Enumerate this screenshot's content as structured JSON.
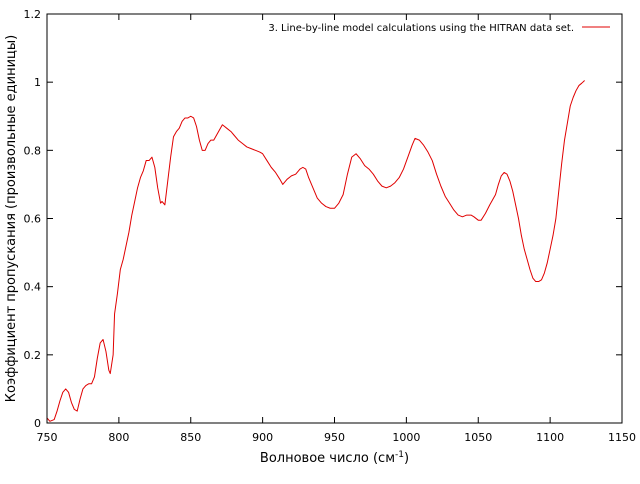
{
  "chart_data": {
    "type": "line",
    "title": "",
    "xlabel": "Волновое число (см",
    "xlabel_sup": "-1",
    "xlabel_suffix": ")",
    "ylabel": "Коэффициент пропускания (произвольные единицы)",
    "xlim": [
      750,
      1150
    ],
    "ylim": [
      0,
      1.2
    ],
    "x_ticks": [
      750,
      800,
      850,
      900,
      950,
      1000,
      1050,
      1100,
      1150
    ],
    "y_ticks": [
      0,
      0.2,
      0.4,
      0.6,
      0.8,
      1,
      1.2
    ],
    "x_tick_labels": [
      "750",
      "800",
      "850",
      "900",
      "950",
      "1000",
      "1050",
      "1100",
      "1150"
    ],
    "y_tick_labels": [
      "0",
      "0.2",
      "0.4",
      "0.6",
      "0.8",
      "1",
      "1.2"
    ],
    "grid": false,
    "legend_position": "top-right",
    "series": [
      {
        "name": "3. Line-by-line  model calculations using the HITRAN data set.",
        "color": "#e00000",
        "x": [
          750,
          752,
          755,
          757,
          759,
          761,
          763,
          765,
          767,
          769,
          771,
          773,
          775,
          777,
          779,
          781,
          783,
          785,
          787,
          789,
          791,
          793,
          794,
          796,
          797,
          799,
          801,
          803,
          805,
          807,
          809,
          811,
          813,
          815,
          817,
          819,
          821,
          823,
          825,
          827,
          829,
          830,
          832,
          834,
          836,
          838,
          840,
          842,
          844,
          846,
          848,
          850,
          852,
          854,
          856,
          858,
          860,
          862,
          864,
          866,
          868,
          870,
          872,
          875,
          878,
          880,
          883,
          886,
          889,
          892,
          895,
          898,
          900,
          903,
          906,
          909,
          912,
          914,
          917,
          920,
          923,
          926,
          928,
          930,
          932,
          935,
          938,
          941,
          944,
          947,
          950,
          953,
          956,
          959,
          962,
          965,
          968,
          971,
          974,
          977,
          980,
          983,
          986,
          989,
          992,
          995,
          998,
          1001,
          1004,
          1006,
          1009,
          1012,
          1015,
          1018,
          1021,
          1024,
          1027,
          1030,
          1033,
          1036,
          1039,
          1042,
          1045,
          1047,
          1050,
          1052,
          1055,
          1058,
          1060,
          1062,
          1064,
          1066,
          1068,
          1070,
          1072,
          1074,
          1076,
          1078,
          1080,
          1082,
          1084,
          1086,
          1088,
          1090,
          1092,
          1094,
          1096,
          1098,
          1100,
          1102,
          1104,
          1106,
          1108,
          1110,
          1112,
          1114,
          1116,
          1118,
          1120,
          1122,
          1124
        ],
        "y": [
          0.015,
          0.005,
          0.01,
          0.035,
          0.065,
          0.09,
          0.1,
          0.09,
          0.06,
          0.04,
          0.035,
          0.07,
          0.1,
          0.11,
          0.115,
          0.115,
          0.135,
          0.19,
          0.235,
          0.245,
          0.21,
          0.155,
          0.145,
          0.2,
          0.32,
          0.38,
          0.45,
          0.48,
          0.52,
          0.56,
          0.61,
          0.65,
          0.69,
          0.72,
          0.74,
          0.77,
          0.77,
          0.78,
          0.75,
          0.69,
          0.645,
          0.65,
          0.64,
          0.71,
          0.78,
          0.84,
          0.855,
          0.865,
          0.885,
          0.895,
          0.895,
          0.9,
          0.895,
          0.87,
          0.83,
          0.8,
          0.8,
          0.82,
          0.83,
          0.83,
          0.845,
          0.86,
          0.875,
          0.865,
          0.855,
          0.845,
          0.83,
          0.82,
          0.81,
          0.805,
          0.8,
          0.795,
          0.79,
          0.77,
          0.75,
          0.735,
          0.715,
          0.7,
          0.715,
          0.725,
          0.73,
          0.745,
          0.75,
          0.745,
          0.72,
          0.69,
          0.66,
          0.645,
          0.635,
          0.63,
          0.63,
          0.645,
          0.67,
          0.73,
          0.78,
          0.79,
          0.775,
          0.755,
          0.745,
          0.73,
          0.71,
          0.695,
          0.69,
          0.695,
          0.705,
          0.72,
          0.745,
          0.78,
          0.815,
          0.835,
          0.83,
          0.815,
          0.795,
          0.77,
          0.73,
          0.695,
          0.665,
          0.645,
          0.625,
          0.61,
          0.605,
          0.61,
          0.61,
          0.605,
          0.595,
          0.595,
          0.615,
          0.64,
          0.655,
          0.67,
          0.7,
          0.725,
          0.735,
          0.73,
          0.71,
          0.68,
          0.64,
          0.6,
          0.55,
          0.51,
          0.48,
          0.45,
          0.425,
          0.415,
          0.415,
          0.42,
          0.44,
          0.47,
          0.51,
          0.55,
          0.6,
          0.68,
          0.76,
          0.83,
          0.88,
          0.93,
          0.955,
          0.975,
          0.99,
          0.997,
          1.005
        ]
      }
    ]
  }
}
